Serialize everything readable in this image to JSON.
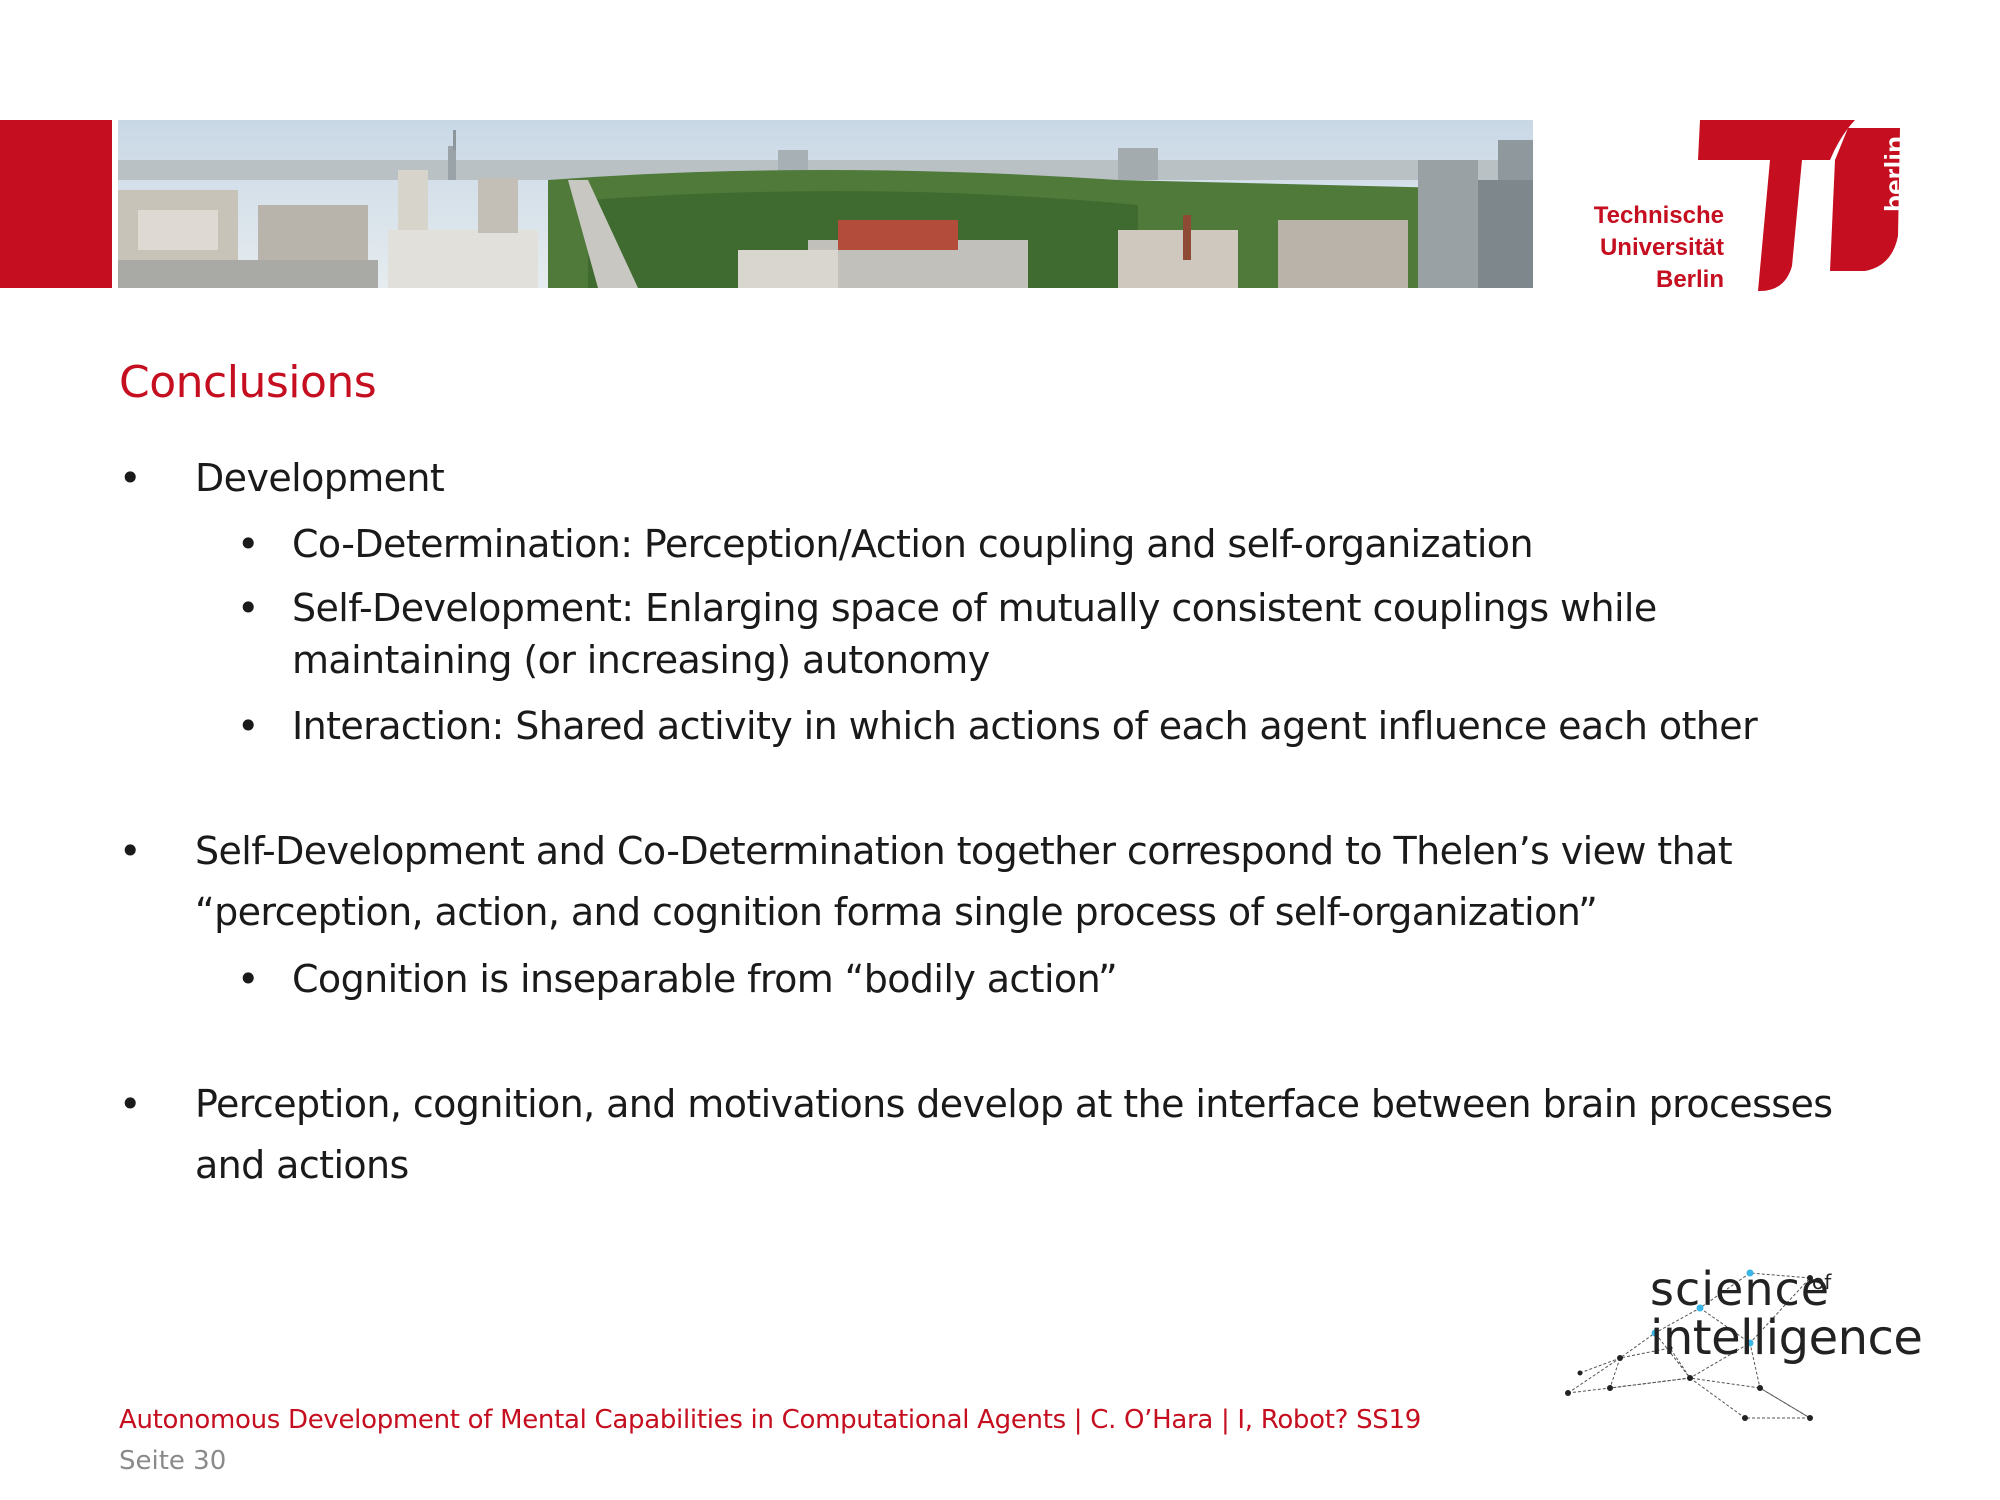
{
  "header": {
    "university_name_lines": [
      "Technische",
      "Universität",
      "Berlin"
    ],
    "logo_side_text": "berlin",
    "accent_color": "#c50e1f"
  },
  "slide": {
    "title": "Conclusions",
    "bullets": [
      {
        "text": "Development",
        "sub": [
          "Co-Determination: Perception/Action coupling and self-organization",
          "Self-Development: Enlarging space of mutually consistent couplings while",
          "maintaining (or increasing) autonomy",
          "Interaction: Shared activity in which actions of each agent influence each other"
        ]
      },
      {
        "text_lines": [
          "Self-Development and Co-Determination together correspond to Thelen’s view that",
          "“perception, action, and cognition forma single process of self-organization”"
        ],
        "sub": [
          "Cognition is inseparable from “bodily action”"
        ]
      },
      {
        "text_lines": [
          "Perception, cognition, and motivations develop at the interface between brain processes",
          "and actions"
        ]
      }
    ]
  },
  "footer": {
    "course": "Autonomous Development of Mental Capabilities in Computational Agents | C. O’Hara | I, Robot? SS19",
    "page": "Seite 30"
  },
  "soi_logo": {
    "line1": "science",
    "of": "of",
    "line2": "intelligence"
  }
}
